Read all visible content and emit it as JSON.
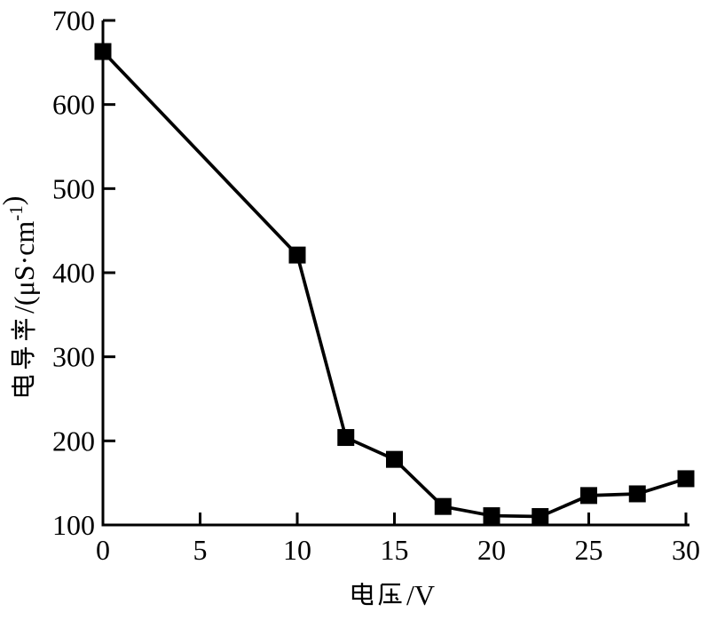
{
  "chart_data": {
    "type": "line",
    "x": [
      0,
      10,
      12.5,
      15,
      17.5,
      20,
      22.5,
      25,
      27.5,
      30
    ],
    "y": [
      663,
      421,
      204,
      178,
      122,
      111,
      110,
      135,
      137,
      155
    ],
    "xlabel": "电压/V",
    "ylabel": "电导率/(μS·cm⁻¹)",
    "xlim": [
      0,
      30
    ],
    "ylim": [
      100,
      700
    ],
    "xticks": [
      "0",
      "5",
      "10",
      "15",
      "20",
      "25",
      "30"
    ],
    "xtick_values": [
      0,
      5,
      10,
      15,
      20,
      25,
      30
    ],
    "yticks": [
      "100",
      "200",
      "300",
      "400",
      "500",
      "600",
      "700"
    ],
    "ytick_values": [
      100,
      200,
      300,
      400,
      500,
      600,
      700
    ],
    "marker": "square",
    "line_color": "#000000",
    "marker_color": "#000000",
    "axis_color": "#000000",
    "background": "#ffffff",
    "grid": false,
    "legend_position": "none"
  }
}
